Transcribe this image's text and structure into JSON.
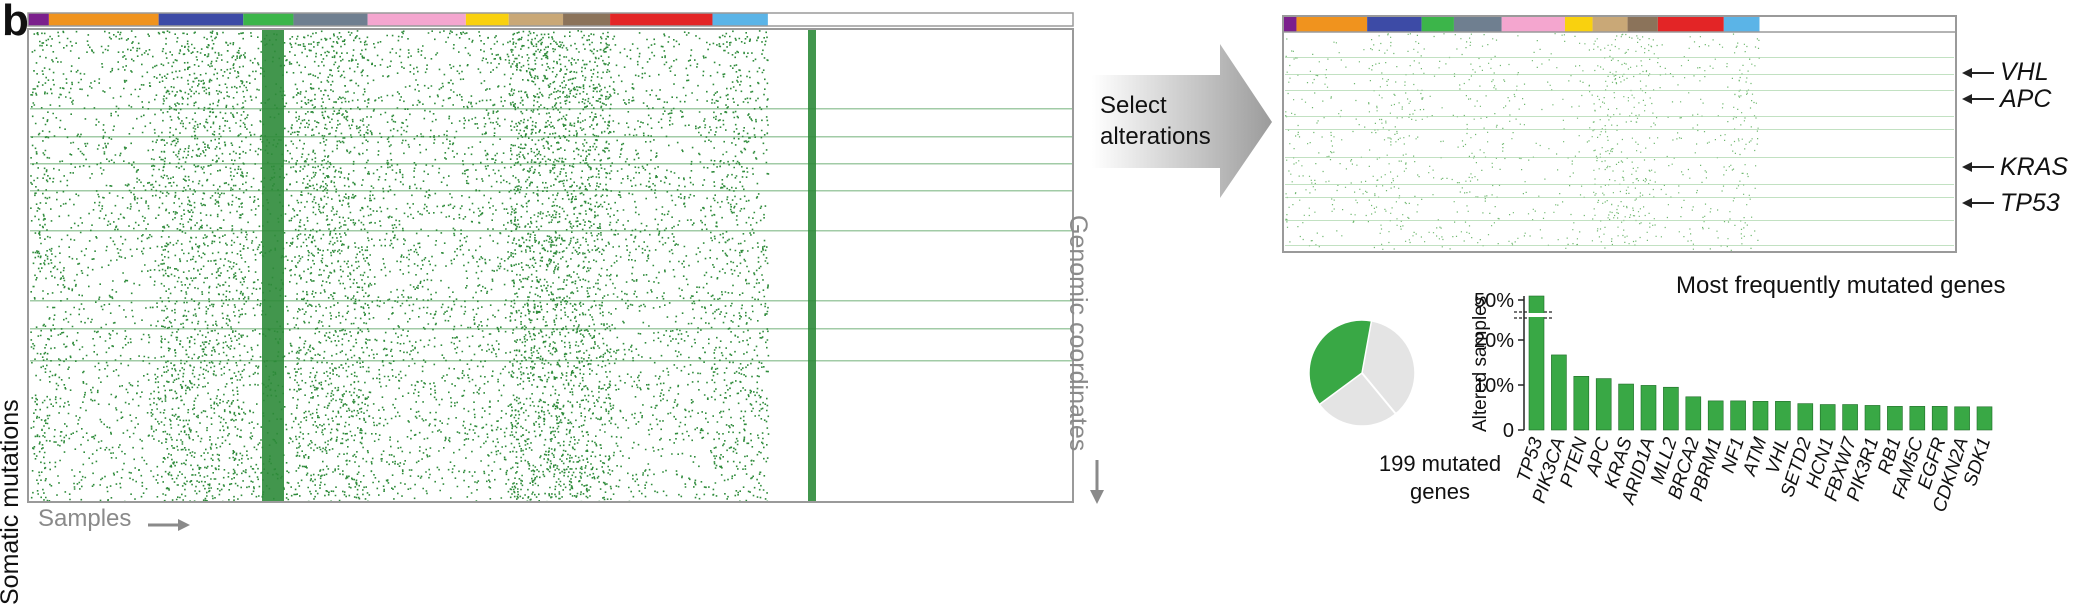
{
  "panel_letter": "b",
  "left_heatmap": {
    "y_label": "Somatic mutations",
    "x_label": "Samples",
    "right_label": "Genomic coordinates"
  },
  "tumor_type_colors": [
    {
      "color": "#7b1f8c",
      "width": 0.02
    },
    {
      "color": "#f0931e",
      "width": 0.105
    },
    {
      "color": "#3d4ba6",
      "width": 0.081
    },
    {
      "color": "#3cb54a",
      "width": 0.048
    },
    {
      "color": "#6f7f90",
      "width": 0.071
    },
    {
      "color": "#f4a6cf",
      "width": 0.094
    },
    {
      "color": "#f9d10f",
      "width": 0.041
    },
    {
      "color": "#c9a877",
      "width": 0.052
    },
    {
      "color": "#8b735a",
      "width": 0.045
    },
    {
      "color": "#e32526",
      "width": 0.098
    },
    {
      "color": "#5bb4e7",
      "width": 0.053
    }
  ],
  "arrow_label": {
    "line1": "Select",
    "line2": "alterations"
  },
  "selected_genes": [
    "VHL",
    "APC",
    "KRAS",
    "TP53"
  ],
  "chart_data": {
    "type": "bar",
    "title": "Most frequently mutated genes",
    "ylabel": "Altered samples",
    "ytick_labels": [
      "0",
      "10%",
      "20%",
      "50%"
    ],
    "axis_break": true,
    "categories": [
      "TP53",
      "PIK3CA",
      "PTEN",
      "APC",
      "KRAS",
      "ARID1A",
      "MLL2",
      "BRCA2",
      "PBRM1",
      "NF1",
      "ATM",
      "VHL",
      "SETD2",
      "HCN1",
      "FBXW7",
      "PIK3R1",
      "RB1",
      "FAM5C",
      "EGFR",
      "CDKN2A",
      "SDK1"
    ],
    "values": [
      42,
      16.5,
      11.8,
      11.3,
      10.1,
      9.8,
      9.4,
      7.3,
      6.4,
      6.4,
      6.3,
      6.3,
      5.8,
      5.6,
      5.6,
      5.4,
      5.2,
      5.2,
      5.2,
      5.1,
      5.1
    ],
    "bar_color": "#39a845"
  },
  "pie": {
    "caption_line1": "199 mutated",
    "caption_line2": "genes",
    "highlight_fraction": 0.38,
    "highlight_color": "#39a845",
    "rest_color": "#e4e4e4"
  },
  "colors": {
    "mutation_green": "#2e8b3a",
    "axis_grey": "#8a8a8a"
  }
}
